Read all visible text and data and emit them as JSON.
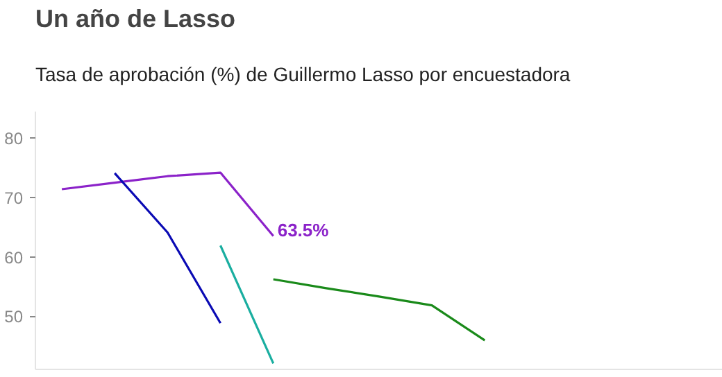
{
  "chart_data": {
    "type": "line",
    "title": "Un año de Lasso",
    "subtitle": "Tasa de aprobación (%) de Guillermo Lasso por encuestadora",
    "categories": [
      null,
      null,
      null,
      null,
      null,
      null,
      null,
      null,
      null,
      null,
      null,
      null,
      null
    ],
    "ylim": [
      41,
      84.5
    ],
    "yticks": [
      50,
      60,
      70,
      80
    ],
    "tick_labels": "y",
    "grid": false,
    "marker": "none",
    "line_style": "solid",
    "series": [
      {
        "color": "#8b22c9",
        "values": [
          71.4,
          72.5,
          73.6,
          74.2,
          63.5,
          null,
          null,
          null,
          null,
          null,
          null,
          null,
          null
        ]
      },
      {
        "color": "#0a0ab4",
        "values": [
          null,
          74.1,
          64.1,
          48.8,
          null,
          null,
          null,
          null,
          null,
          null,
          null,
          null,
          null
        ]
      },
      {
        "color": "#1aaea0",
        "values": [
          null,
          null,
          null,
          61.9,
          42,
          null,
          null,
          null,
          null,
          null,
          null,
          null,
          null
        ]
      },
      {
        "color": "#1a8a1a",
        "values": [
          null,
          null,
          null,
          null,
          56.2,
          54.7,
          53.3,
          51.8,
          45.9,
          null,
          null,
          null,
          null
        ]
      }
    ],
    "annotations": [
      "63.5%"
    ]
  }
}
